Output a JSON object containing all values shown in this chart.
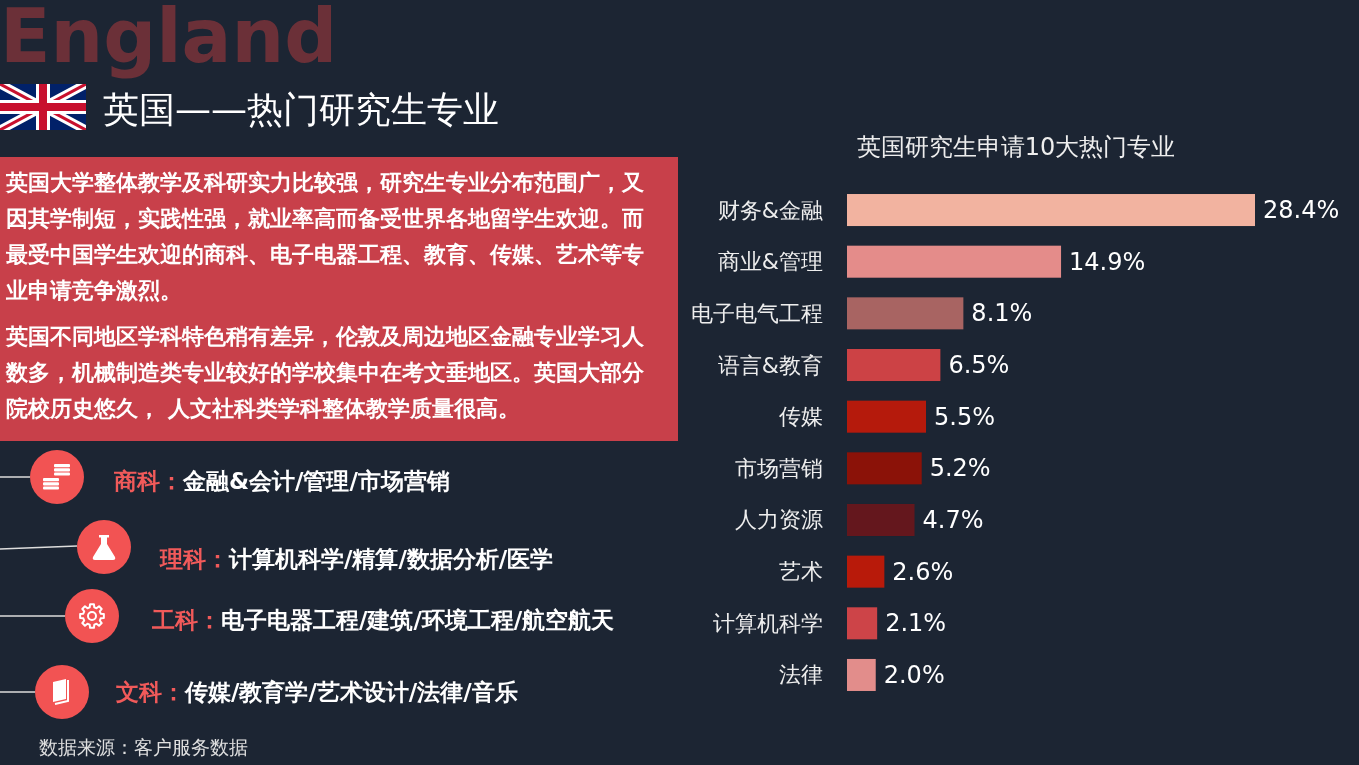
{
  "chart_data": {
    "type": "bar",
    "orientation": "horizontal",
    "title": "英国研究生申请10大热门专业",
    "categories": [
      "财务&金融",
      "商业&管理",
      "电子电气工程",
      "语言&教育",
      "传媒",
      "市场营销",
      "人力资源",
      "艺术",
      "计算机科学",
      "法律"
    ],
    "values": [
      28.4,
      14.9,
      8.1,
      6.5,
      5.5,
      5.2,
      4.7,
      2.6,
      2.1,
      2.0
    ],
    "colors": [
      "#f2b3a0",
      "#e48c8a",
      "#a86462",
      "#cc4245",
      "#b51a0c",
      "#8b1208",
      "#64171d",
      "#b81a0a",
      "#cd4448",
      "#e28d8b"
    ],
    "value_labels": [
      "28.4%",
      "14.9%",
      "8.1%",
      "6.5%",
      "5.5%",
      "5.2%",
      "4.7%",
      "2.6%",
      "2.1%",
      "2.0%"
    ],
    "annotations": [
      "England",
      "英国——热门研究生专业",
      "英国大学整体教学及科研实力比较强，研究生专业分布范围广，又因其学制短，实践性强，就业率高而备受世界各地留学生欢迎。而最受中国学生欢迎的商科、电子电器工程、教育、传媒、艺术等专业申请竞争激烈。",
      "英国不同地区学科特色稍有差异，伦敦及周边地区金融专业学习人数多，机械制造类专业较好的学校集中在考文垂地区。英国大部分院校历史悠久， 人文社科类学科整体教学质量很高。",
      "商科：",
      "金融&会计/管理/市场营销",
      "理科：",
      "计算机科学/精算/数据分析/医学",
      "工科：",
      "电子电器工程/建筑/环境工程/航空航天",
      "文科：",
      "传媒/教育学/艺术设计/法律/音乐",
      "数据来源：客户服务数据"
    ]
  }
}
